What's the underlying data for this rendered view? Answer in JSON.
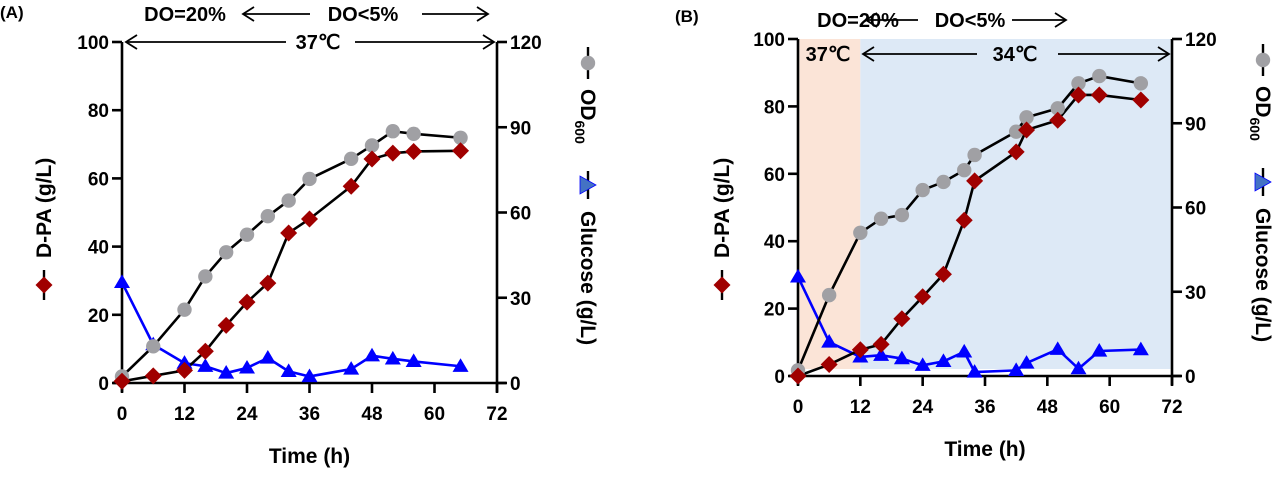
{
  "chart_data": [
    {
      "panel": "(A)",
      "type": "line",
      "xlabel": "Time (h)",
      "ylabel_left": "D-PA (g/L)",
      "ylabel_right_top": "OD600",
      "ylabel_right_bottom": "Glucose (g/L)",
      "xlim": [
        0,
        72
      ],
      "xticks": [
        0,
        12,
        24,
        36,
        48,
        60,
        72
      ],
      "ylim_left": [
        0,
        100
      ],
      "yticks_left": [
        0,
        20,
        40,
        60,
        80,
        100
      ],
      "ylim_right": [
        0,
        120
      ],
      "yticks_right": [
        0,
        30,
        60,
        90,
        120
      ],
      "grid": false,
      "annotations": {
        "row1": {
          "left_text": "DO=20%",
          "middle_text": "DO<5%"
        },
        "row2": {
          "middle_text": "37℃"
        }
      },
      "shading": [],
      "series": [
        {
          "name": "D-PA",
          "axis": "left",
          "marker": "diamond",
          "color": "#A00000",
          "line_color": "#000000",
          "x": [
            0,
            6,
            12,
            16,
            20,
            24,
            28,
            32,
            36,
            44,
            48,
            52,
            56,
            65
          ],
          "values": [
            0.5,
            2.1,
            3.7,
            9.3,
            16.9,
            23.7,
            29.3,
            44.0,
            48.1,
            57.7,
            65.7,
            67.4,
            67.9,
            68.1
          ]
        },
        {
          "name": "OD600",
          "axis": "right",
          "marker": "circle",
          "color": "#A0A0A4",
          "line_color": "#000000",
          "x": [
            0,
            6,
            12,
            16,
            20,
            24,
            28,
            32,
            36,
            44,
            48,
            52,
            56,
            65
          ],
          "values": [
            2.3,
            12.9,
            25.8,
            37.5,
            46.0,
            52.2,
            58.7,
            64.2,
            71.8,
            78.9,
            83.6,
            88.6,
            87.7,
            86.3
          ]
        },
        {
          "name": "Glucose",
          "axis": "right",
          "marker": "triangle",
          "color": "#0000FF",
          "line_color": "#0000FF",
          "x": [
            0,
            6,
            12,
            16,
            20,
            24,
            28,
            32,
            36,
            44,
            48,
            52,
            56,
            65
          ],
          "values": [
            35.4,
            13.5,
            7.0,
            5.9,
            3.5,
            5.3,
            8.8,
            4.1,
            2.3,
            4.9,
            9.6,
            8.5,
            7.6,
            5.9
          ]
        }
      ]
    },
    {
      "panel": "(B)",
      "type": "line",
      "xlabel": "Time (h)",
      "ylabel_left": "D-PA (g/L)",
      "ylabel_right_top": "OD600",
      "ylabel_right_bottom": "Glucose (g/L)",
      "xlim": [
        0,
        72
      ],
      "xticks": [
        0,
        12,
        24,
        36,
        48,
        60,
        72
      ],
      "ylim_left": [
        0,
        100
      ],
      "yticks_left": [
        0,
        20,
        40,
        60,
        80,
        100
      ],
      "ylim_right": [
        0,
        120
      ],
      "yticks_right": [
        0,
        30,
        60,
        90,
        120
      ],
      "grid": false,
      "annotations": {
        "row1": {
          "left_text": "DO=20%",
          "middle_text": "DO<5%"
        },
        "row2": {
          "left_text": "37℃",
          "middle_text": "34℃"
        }
      },
      "shading": [
        {
          "from": 0,
          "to": 12,
          "color": "#FBE4D7",
          "label": "37℃"
        },
        {
          "from": 12,
          "to": 72,
          "color": "#DDE9F6",
          "label": "34℃"
        }
      ],
      "series": [
        {
          "name": "D-PA",
          "axis": "left",
          "marker": "diamond",
          "color": "#A00000",
          "line_color": "#000000",
          "x": [
            0,
            6,
            12,
            16,
            20,
            24,
            28,
            32,
            34,
            42,
            44,
            50,
            54,
            58,
            66
          ],
          "values": [
            0.0,
            3.4,
            7.8,
            9.4,
            17.0,
            23.5,
            30.2,
            46.2,
            57.9,
            66.5,
            73.0,
            75.9,
            83.4,
            83.4,
            81.9
          ]
        },
        {
          "name": "OD600",
          "axis": "right",
          "marker": "circle",
          "color": "#A0A0A4",
          "line_color": "#000000",
          "x": [
            0,
            6,
            12,
            16,
            20,
            24,
            28,
            32,
            34,
            42,
            44,
            50,
            54,
            58,
            66
          ],
          "values": [
            2.0,
            28.8,
            51.0,
            56.0,
            57.3,
            66.2,
            69.1,
            73.3,
            78.7,
            87.0,
            92.1,
            95.3,
            104.2,
            106.8,
            104.2
          ]
        },
        {
          "name": "Glucose",
          "axis": "right",
          "marker": "triangle",
          "color": "#0000FF",
          "line_color": "#0000FF",
          "x": [
            0,
            6,
            12,
            16,
            20,
            24,
            28,
            32,
            34,
            42,
            44,
            50,
            54,
            58,
            66
          ],
          "values": [
            35.3,
            12.1,
            6.8,
            7.4,
            6.2,
            3.8,
            5.2,
            8.6,
            1.4,
            2.0,
            4.6,
            9.5,
            2.6,
            8.9,
            9.4
          ]
        }
      ]
    }
  ],
  "legend": {
    "dpa_label": "D-PA (g/L)",
    "od_label": "OD",
    "od_subscript": "600",
    "glucose_label": "Glucose (g/L)"
  }
}
